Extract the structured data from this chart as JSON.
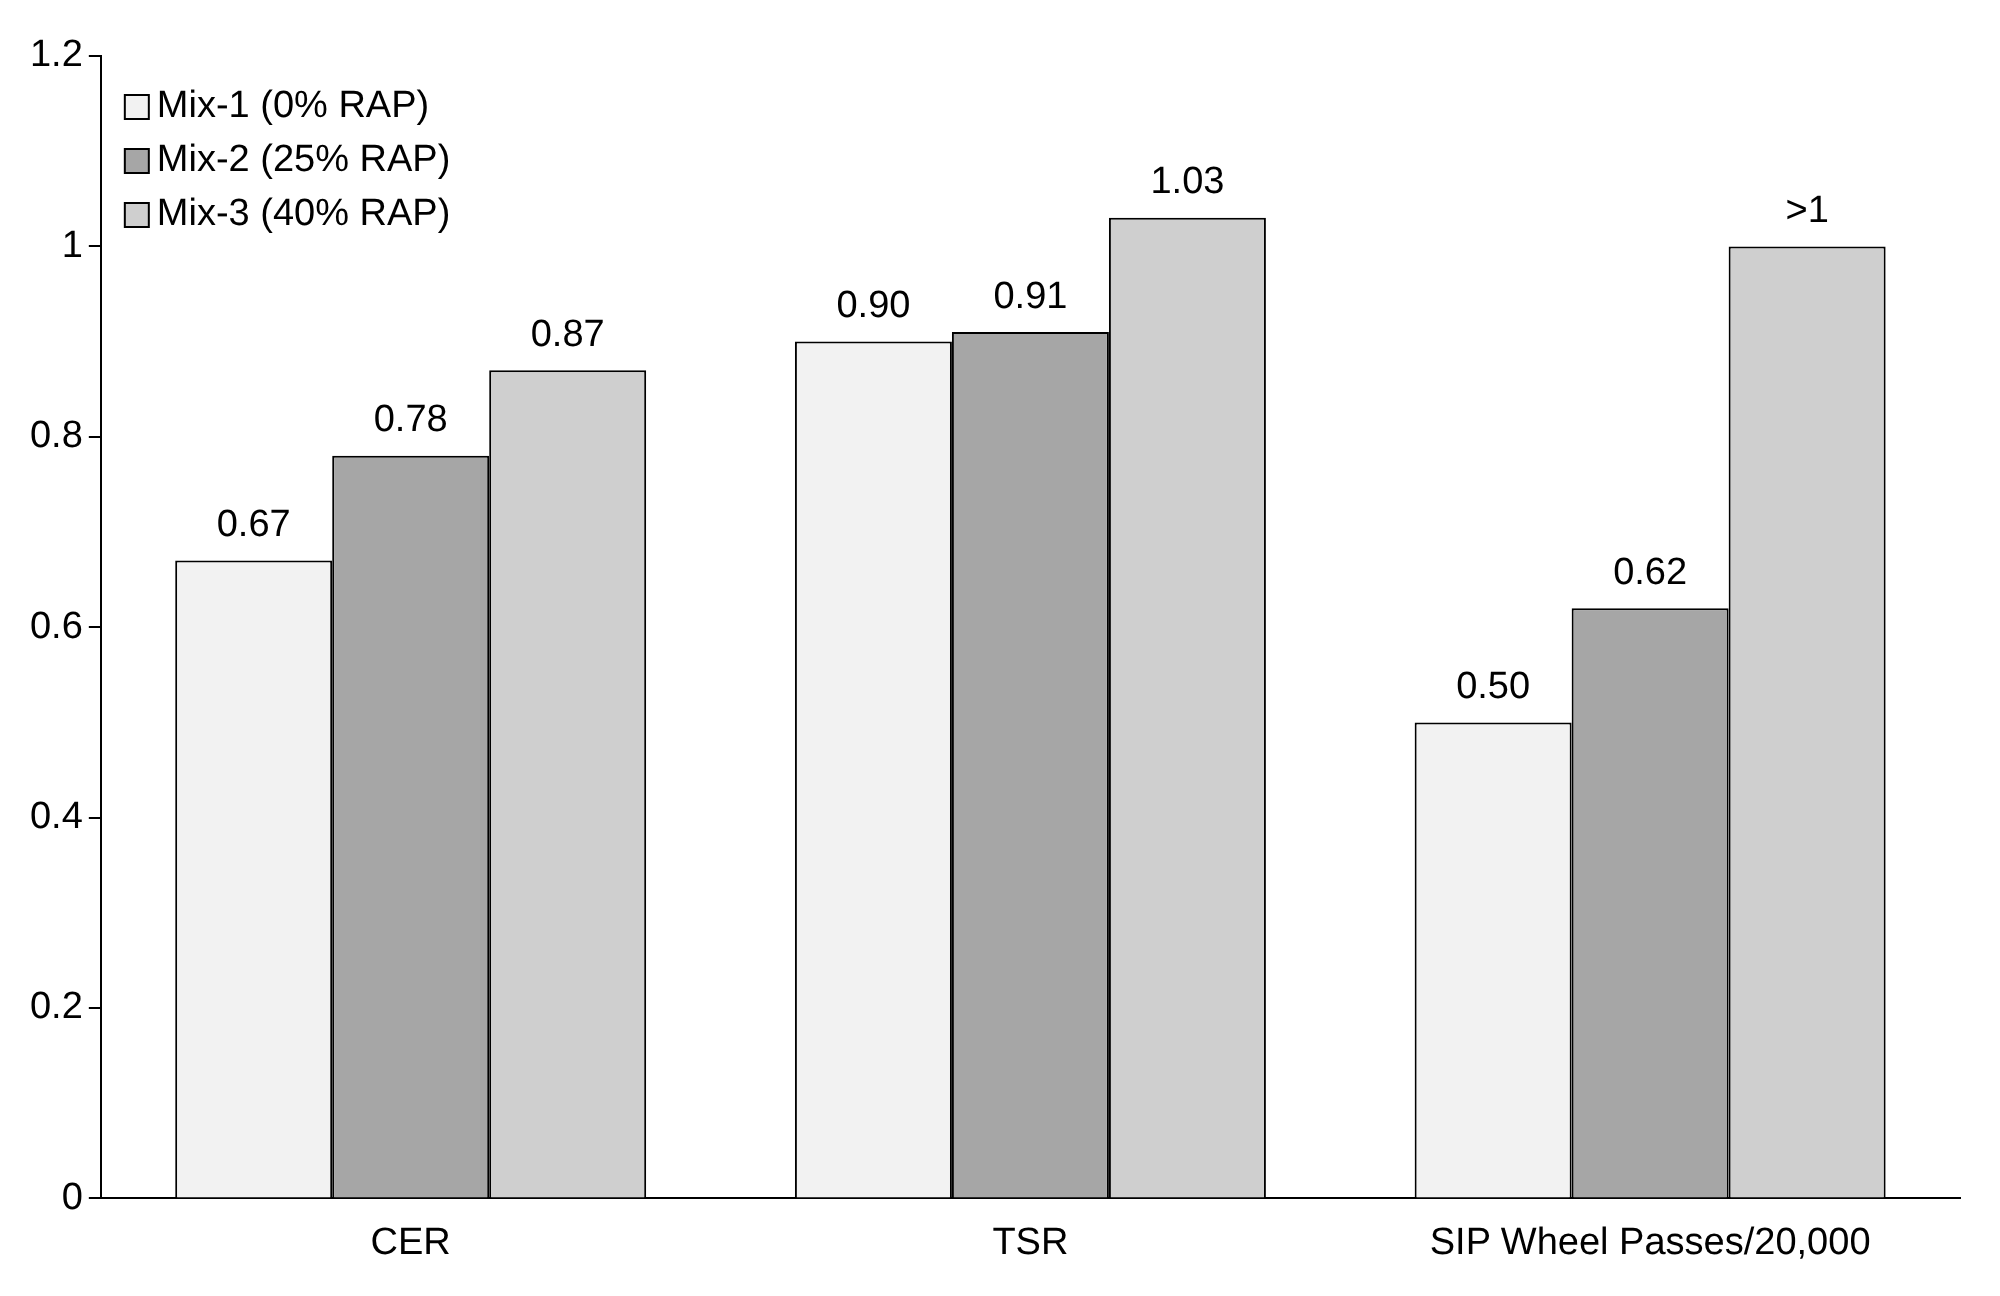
{
  "chart_data": {
    "type": "bar",
    "categories": [
      "CER",
      "TSR",
      "SIP Wheel Passes/20,000"
    ],
    "series": [
      {
        "name": "Mix-1 (0% RAP)",
        "color": "#f2f2f2",
        "values": [
          0.67,
          0.9,
          0.5
        ],
        "value_labels": [
          "0.67",
          "0.90",
          "0.50"
        ]
      },
      {
        "name": "Mix-2 (25% RAP)",
        "color": "#a6a6a6",
        "values": [
          0.78,
          0.91,
          0.62
        ],
        "value_labels": [
          "0.78",
          "0.91",
          "0.62"
        ]
      },
      {
        "name": "Mix-3 (40% RAP)",
        "color": "#cfcfcf",
        "values": [
          0.87,
          1.03,
          1
        ],
        "value_labels": [
          "0.87",
          "1.03",
          ">1"
        ]
      }
    ],
    "ylim": [
      0,
      1.2
    ],
    "yticks": [
      0,
      0.2,
      0.4,
      0.6,
      0.8,
      1,
      1.2
    ],
    "grid": false,
    "legend": "top left"
  }
}
